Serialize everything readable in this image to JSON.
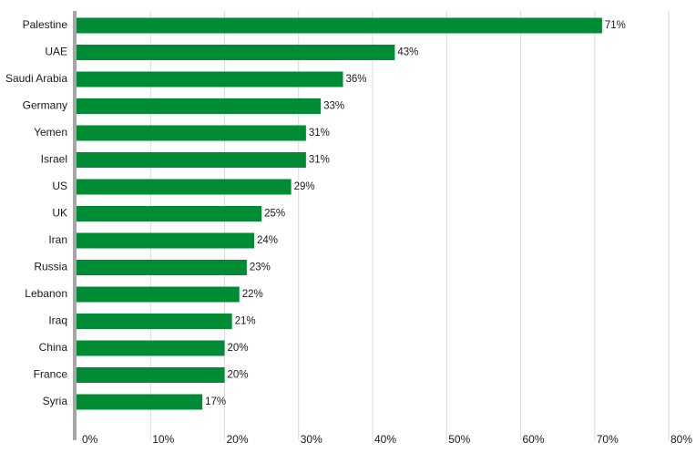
{
  "chart_data": {
    "type": "bar",
    "orientation": "horizontal",
    "categories": [
      "Palestine",
      "UAE",
      "Saudi Arabia",
      "Germany",
      "Yemen",
      "Israel",
      "US",
      "UK",
      "Iran",
      "Russia",
      "Lebanon",
      "Iraq",
      "China",
      "France",
      "Syria"
    ],
    "values": [
      71,
      43,
      36,
      33,
      31,
      31,
      29,
      25,
      24,
      23,
      22,
      21,
      20,
      20,
      17
    ],
    "value_labels": [
      "71%",
      "43%",
      "36%",
      "33%",
      "31%",
      "31%",
      "29%",
      "25%",
      "24%",
      "23%",
      "22%",
      "21%",
      "20%",
      "20%",
      "17%"
    ],
    "xlim": [
      0,
      80
    ],
    "x_ticks": [
      0,
      10,
      20,
      30,
      40,
      50,
      60,
      70,
      80
    ],
    "x_tick_labels": [
      "0%",
      "10%",
      "20%",
      "30%",
      "40%",
      "50%",
      "60%",
      "70%",
      "80%"
    ],
    "grid": true,
    "bar_color": "#008C35",
    "title": "",
    "xlabel": "",
    "ylabel": ""
  }
}
